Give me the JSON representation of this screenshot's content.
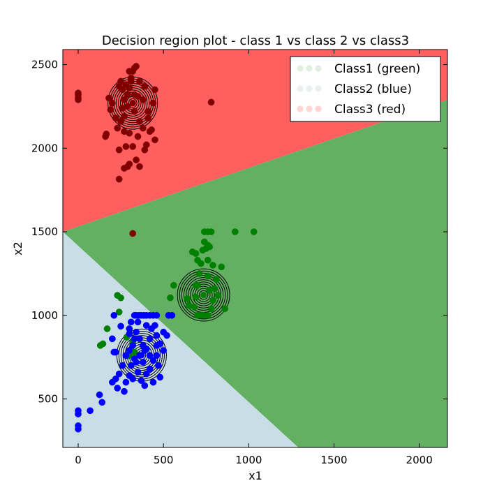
{
  "chart_data": {
    "type": "scatter",
    "title": "Decision region plot - class 1 vs class 2 vs class3",
    "xlabel": "x1",
    "ylabel": "x2",
    "xlim": [
      -90,
      2165
    ],
    "ylim": [
      210,
      2590
    ],
    "xticks": [
      0,
      500,
      1000,
      1500,
      2000
    ],
    "yticks": [
      500,
      1000,
      1500,
      2000,
      2500
    ],
    "grid": false,
    "legend_position": "top-right",
    "regions": {
      "class2_blue_boundary": [
        [
          -90,
          1500
        ],
        [
          1290,
          210
        ]
      ],
      "class1_green_boundary": [
        [
          -90,
          1500
        ],
        [
          2165,
          2290
        ]
      ],
      "colors": {
        "red": "#ff5f5f",
        "green": "#63b063",
        "blue": "#c8dde6"
      }
    },
    "series": [
      {
        "name": "Class1 (green)",
        "color": "#008000",
        "mean": [
          735,
          1122
        ],
        "points": [
          [
            740,
            1500
          ],
          [
            760,
            1500
          ],
          [
            780,
            1500
          ],
          [
            920,
            1500
          ],
          [
            1030,
            1500
          ],
          [
            670,
            1380
          ],
          [
            690,
            1370
          ],
          [
            740,
            1440
          ],
          [
            760,
            1420
          ],
          [
            770,
            1410
          ],
          [
            730,
            1390
          ],
          [
            750,
            1400
          ],
          [
            700,
            1330
          ],
          [
            720,
            1310
          ],
          [
            760,
            1330
          ],
          [
            790,
            1300
          ],
          [
            840,
            1290
          ],
          [
            560,
            1180
          ],
          [
            540,
            1105
          ],
          [
            640,
            1100
          ],
          [
            800,
            1160
          ],
          [
            820,
            1120
          ],
          [
            860,
            1040
          ],
          [
            650,
            1060
          ],
          [
            680,
            1050
          ],
          [
            700,
            1000
          ],
          [
            720,
            1000
          ],
          [
            735,
            1000
          ],
          [
            760,
            1000
          ],
          [
            780,
            1040
          ],
          [
            790,
            1090
          ],
          [
            770,
            1150
          ],
          [
            700,
            1180
          ],
          [
            690,
            1110
          ],
          [
            230,
            1120
          ],
          [
            250,
            1105
          ],
          [
            240,
            1020
          ],
          [
            170,
            920
          ],
          [
            130,
            820
          ],
          [
            145,
            830
          ],
          [
            285,
            870
          ],
          [
            320,
            840
          ],
          [
            330,
            780
          ],
          [
            300,
            760
          ],
          [
            760,
            1235
          ],
          [
            710,
            1250
          ],
          [
            690,
            1180
          ],
          [
            810,
            1215
          ]
        ]
      },
      {
        "name": "Class2 (blue)",
        "color": "#0000ff",
        "mean": [
          372,
          762
        ],
        "points": [
          [
            0,
            320
          ],
          [
            0,
            340
          ],
          [
            0,
            410
          ],
          [
            0,
            430
          ],
          [
            70,
            430
          ],
          [
            140,
            480
          ],
          [
            125,
            525
          ],
          [
            230,
            565
          ],
          [
            270,
            545
          ],
          [
            200,
            600
          ],
          [
            220,
            620
          ],
          [
            240,
            650
          ],
          [
            300,
            640
          ],
          [
            320,
            620
          ],
          [
            440,
            600
          ],
          [
            480,
            630
          ],
          [
            370,
            610
          ],
          [
            390,
            580
          ],
          [
            220,
            780
          ],
          [
            200,
            860
          ],
          [
            210,
            1000
          ],
          [
            250,
            935
          ],
          [
            300,
            890
          ],
          [
            310,
            960
          ],
          [
            330,
            1000
          ],
          [
            340,
            1000
          ],
          [
            355,
            1000
          ],
          [
            370,
            1000
          ],
          [
            385,
            1000
          ],
          [
            400,
            1000
          ],
          [
            420,
            1000
          ],
          [
            440,
            1000
          ],
          [
            460,
            1000
          ],
          [
            530,
            1000
          ],
          [
            550,
            1000
          ],
          [
            350,
            960
          ],
          [
            400,
            940
          ],
          [
            430,
            920
          ],
          [
            460,
            880
          ],
          [
            480,
            830
          ],
          [
            500,
            790
          ],
          [
            340,
            900
          ],
          [
            360,
            860
          ],
          [
            380,
            820
          ],
          [
            390,
            790
          ],
          [
            420,
            760
          ],
          [
            440,
            730
          ],
          [
            470,
            700
          ],
          [
            310,
            700
          ],
          [
            330,
            740
          ],
          [
            300,
            790
          ],
          [
            320,
            820
          ],
          [
            280,
            760
          ],
          [
            420,
            680
          ],
          [
            400,
            650
          ],
          [
            350,
            660
          ],
          [
            460,
            760
          ],
          [
            460,
            820
          ],
          [
            520,
            880
          ],
          [
            500,
            900
          ],
          [
            280,
            600
          ],
          [
            210,
            780
          ],
          [
            260,
            700
          ],
          [
            340,
            720
          ],
          [
            380,
            720
          ],
          [
            360,
            760
          ],
          [
            400,
            800
          ],
          [
            420,
            860
          ],
          [
            450,
            940
          ],
          [
            330,
            860
          ],
          [
            300,
            920
          ]
        ]
      },
      {
        "name": "Class3 (red)",
        "color": "#800000",
        "mean": [
          320,
          2270
        ],
        "points": [
          [
            0,
            2300
          ],
          [
            0,
            2320
          ],
          [
            0,
            2290
          ],
          [
            0,
            2330
          ],
          [
            160,
            2070
          ],
          [
            165,
            2085
          ],
          [
            240,
            1815
          ],
          [
            270,
            1880
          ],
          [
            290,
            1890
          ],
          [
            300,
            1905
          ],
          [
            340,
            1930
          ],
          [
            360,
            1890
          ],
          [
            240,
            1990
          ],
          [
            280,
            2010
          ],
          [
            320,
            2010
          ],
          [
            390,
            1990
          ],
          [
            400,
            2020
          ],
          [
            270,
            2100
          ],
          [
            300,
            2090
          ],
          [
            350,
            2070
          ],
          [
            380,
            2120
          ],
          [
            420,
            2100
          ],
          [
            450,
            2050
          ],
          [
            430,
            2110
          ],
          [
            410,
            2180
          ],
          [
            220,
            2180
          ],
          [
            270,
            2190
          ],
          [
            260,
            2240
          ],
          [
            290,
            2250
          ],
          [
            330,
            2220
          ],
          [
            350,
            2310
          ],
          [
            380,
            2290
          ],
          [
            440,
            2270
          ],
          [
            450,
            2350
          ],
          [
            300,
            2360
          ],
          [
            280,
            2380
          ],
          [
            310,
            2420
          ],
          [
            320,
            2460
          ],
          [
            330,
            2480
          ],
          [
            340,
            2490
          ],
          [
            300,
            2460
          ],
          [
            310,
            2400
          ],
          [
            360,
            2400
          ],
          [
            390,
            2370
          ],
          [
            330,
            2320
          ],
          [
            290,
            2320
          ],
          [
            200,
            2270
          ],
          [
            180,
            2300
          ],
          [
            780,
            2275
          ],
          [
            320,
            1490
          ],
          [
            230,
            2120
          ],
          [
            250,
            2160
          ],
          [
            360,
            2160
          ],
          [
            410,
            2220
          ],
          [
            190,
            2230
          ],
          [
            270,
            2290
          ],
          [
            260,
            2350
          ],
          [
            240,
            2370
          ],
          [
            250,
            2400
          ]
        ]
      }
    ]
  }
}
